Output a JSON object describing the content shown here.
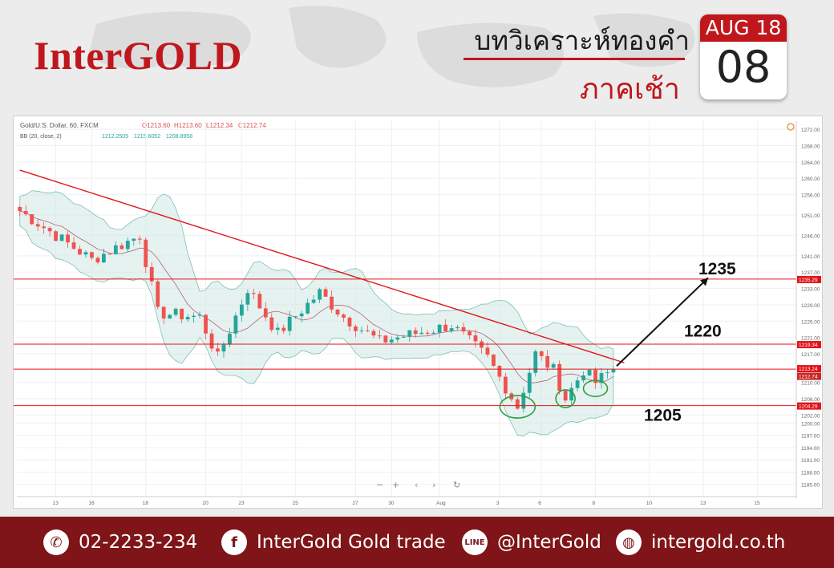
{
  "header": {
    "logo": "InterGOLD",
    "title": "บทวิเคราะห์ทองคำ",
    "subtitle": "ภาคเช้า",
    "calendar_month": "AUG 18",
    "calendar_day": "08"
  },
  "colors": {
    "brand": "#c0171d",
    "footer_bg": "#7f1518",
    "bull": "#26a69a",
    "bear": "#ef5350",
    "band_fill": "#cfe8e4",
    "trend": "#e0141b"
  },
  "chart_info": {
    "symbol_line": "Gold/U.S. Dollar, 60, FXCM",
    "ohlc": {
      "o": "O1213.60",
      "h": "H1213.60",
      "l": "L1212.34",
      "c": "C1212.74"
    },
    "bb_line": "BB (20, close, 2)",
    "bb_values": [
      "1212.2505",
      "1215.6052",
      "1208.8958"
    ],
    "toolbar": [
      "−",
      "+",
      "‹",
      "›",
      "↻"
    ]
  },
  "chart_data": {
    "type": "candlestick",
    "instrument": "Gold/U.S. Dollar",
    "ylim": [
      1182,
      1274
    ],
    "y_ticks": [
      "1272.00",
      "1268.00",
      "1264.00",
      "1260.00",
      "1256.00",
      "1251.00",
      "1246.00",
      "1241.00",
      "1237.00",
      "1233.00",
      "1229.00",
      "1225.00",
      "1221.00",
      "1217.00",
      "1210.00",
      "1206.00",
      "1202.00",
      "1200.00",
      "1197.00",
      "1194.00",
      "1191.00",
      "1188.00",
      "1185.00"
    ],
    "x_ticks": [
      "13",
      "16",
      "18",
      "20",
      "23",
      "25",
      "27",
      "30",
      "Aug",
      "3",
      "6",
      "8",
      "10",
      "13",
      "15"
    ],
    "x_tick_index": [
      6,
      12,
      21,
      31,
      37,
      46,
      56,
      62,
      70,
      80,
      87,
      96,
      105,
      114,
      123
    ],
    "price_labels": [
      "1235.29",
      "1219.34",
      "1213.24",
      "1212.74",
      "1204.29"
    ],
    "horizontal_levels": [
      1235.29,
      1219.34,
      1213.24,
      1204.29
    ],
    "trendline": [
      [
        0,
        1262
      ],
      [
        100,
        1215
      ]
    ],
    "annotations": [
      "1235",
      "1220",
      "1205"
    ],
    "key_points": [
      {
        "i": 0,
        "close": 1252
      },
      {
        "i": 6,
        "close": 1246
      },
      {
        "i": 12,
        "close": 1240
      },
      {
        "i": 20,
        "close": 1246
      },
      {
        "i": 23,
        "close": 1227
      },
      {
        "i": 30,
        "close": 1226
      },
      {
        "i": 33,
        "close": 1216
      },
      {
        "i": 38,
        "close": 1233
      },
      {
        "i": 43,
        "close": 1222
      },
      {
        "i": 50,
        "close": 1232
      },
      {
        "i": 54,
        "close": 1226
      },
      {
        "i": 60,
        "close": 1220
      },
      {
        "i": 66,
        "close": 1222
      },
      {
        "i": 72,
        "close": 1224
      },
      {
        "i": 78,
        "close": 1216
      },
      {
        "i": 83,
        "close": 1204
      },
      {
        "i": 86,
        "close": 1217
      },
      {
        "i": 89,
        "close": 1213
      },
      {
        "i": 91,
        "close": 1206
      },
      {
        "i": 94,
        "close": 1213
      },
      {
        "i": 96,
        "close": 1210
      },
      {
        "i": 99,
        "close": 1213.24
      }
    ]
  },
  "footer": {
    "phone": "02-2233-234",
    "facebook": "InterGold Gold trade",
    "line": "@InterGold",
    "web": "intergold.co.th",
    "line_icon": "LINE"
  }
}
